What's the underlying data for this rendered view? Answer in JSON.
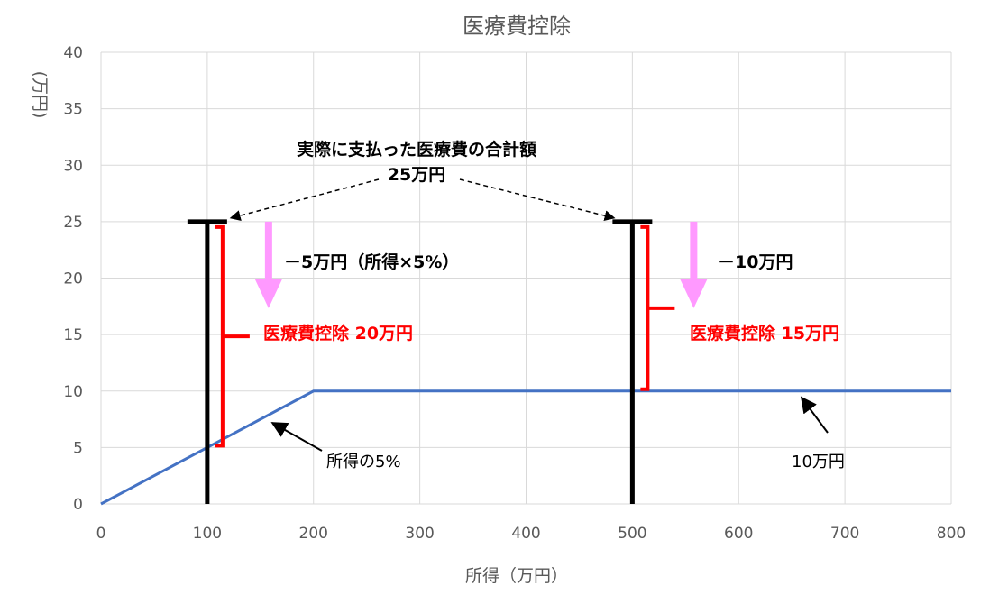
{
  "chart_data": {
    "type": "line",
    "title": "医療費控除",
    "xlabel": "所得（万円）",
    "ylabel": "(万円)",
    "xlim": [
      0,
      800
    ],
    "ylim": [
      0,
      40
    ],
    "x_ticks": [
      "0",
      "100",
      "200",
      "300",
      "400",
      "500",
      "600",
      "700",
      "800"
    ],
    "y_ticks": [
      "0",
      "5",
      "10",
      "15",
      "20",
      "25",
      "30",
      "35",
      "40"
    ],
    "grid": true,
    "colors": {
      "line": "#4472c4",
      "bar": "#000000",
      "bracket": "#ff0000",
      "arrow": "#ff99ff"
    },
    "series": [
      {
        "x": [
          0,
          200,
          800
        ],
        "y": [
          0,
          10,
          10
        ]
      }
    ],
    "cases": [
      {
        "income": 100,
        "total": 25,
        "limit": 5,
        "deduction": 20
      },
      {
        "income": 500,
        "total": 25,
        "limit": 10,
        "deduction": 15
      }
    ],
    "annotations": {
      "total_paid_line1": "実際に支払った医療費の合計額",
      "total_paid_line2": "25万円",
      "minus_left": "－5万円（所得×5%）",
      "minus_right": "－10万円",
      "deduction_left": "医療費控除 20万円",
      "deduction_right": "医療費控除 15万円",
      "five_percent_label": "所得の5%",
      "ten_man_label": "10万円"
    }
  }
}
